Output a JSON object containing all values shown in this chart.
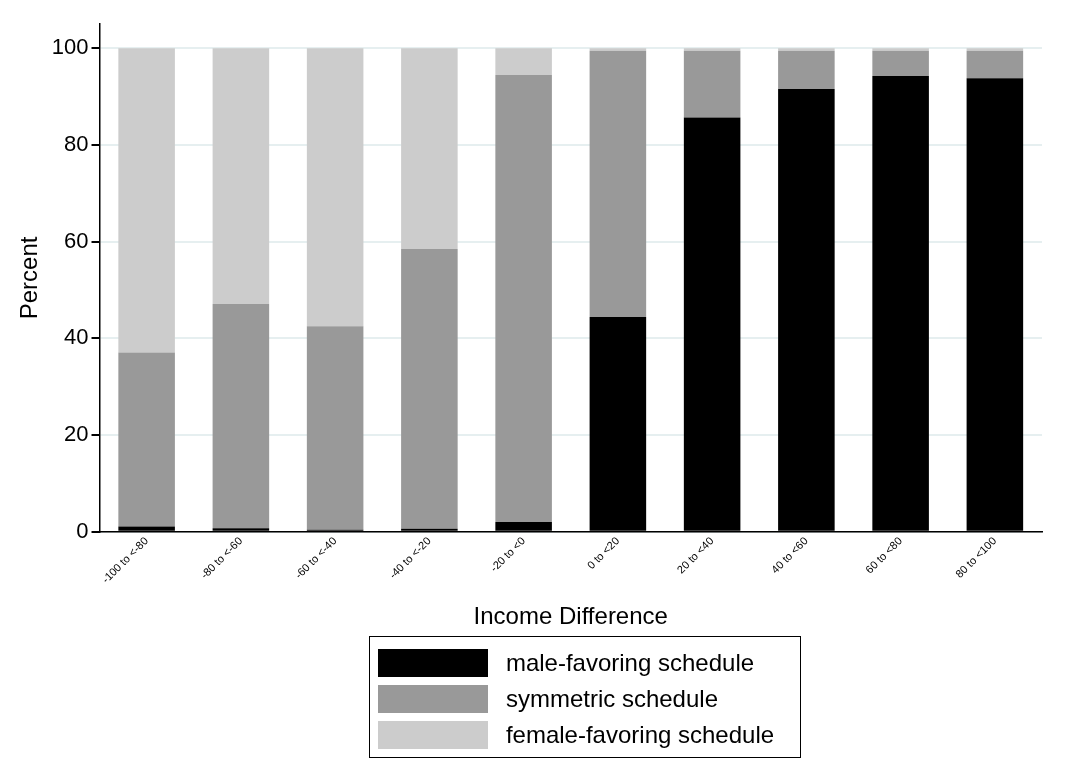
{
  "chart_data": {
    "type": "bar",
    "stacked": true,
    "xlabel": "Income Difference",
    "ylabel": "Percent",
    "categories": [
      "-100 to <-80",
      "-80 to <-60",
      "-60 to <-40",
      "-40 to <-20",
      "-20 to <0",
      "0 to <20",
      "20 to <40",
      "40 to <60",
      "60 to <80",
      "80 to <100"
    ],
    "series": [
      {
        "name": "male-favoring schedule",
        "color": "#000000",
        "values": [
          1.1,
          0.7,
          0.4,
          0.6,
          2.0,
          44.4,
          85.7,
          91.6,
          94.3,
          93.8
        ]
      },
      {
        "name": "symmetric schedule",
        "color": "#999999",
        "values": [
          36,
          46.4,
          42.1,
          57.9,
          92.5,
          55.1,
          13.8,
          7.9,
          5.2,
          5.7
        ]
      },
      {
        "name": "female-favoring schedule",
        "color": "#cccccc",
        "values": [
          62.9,
          52.9,
          57.5,
          41.5,
          5.5,
          0.5,
          0.5,
          0.5,
          0.5,
          0.5
        ]
      }
    ],
    "ylim": [
      0,
      105
    ],
    "yticks": [
      0,
      20,
      40,
      60,
      80,
      100
    ],
    "grid": "y",
    "legend": "bottom"
  }
}
